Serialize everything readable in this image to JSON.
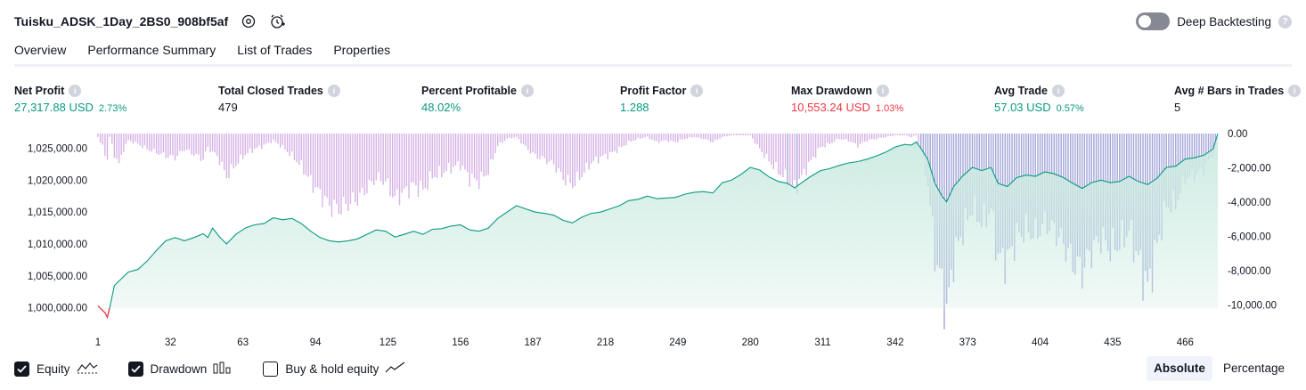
{
  "header": {
    "title": "Tuisku_ADSK_1Day_2BS0_908bf5af",
    "settings_icon": "gear-icon",
    "alert_icon": "alarm-plus-icon",
    "deep_backtesting_label": "Deep Backtesting",
    "deep_backtesting_enabled": false
  },
  "tabs": [
    {
      "label": "Overview",
      "active": true
    },
    {
      "label": "Performance Summary",
      "active": false
    },
    {
      "label": "List of Trades",
      "active": false
    },
    {
      "label": "Properties",
      "active": false
    }
  ],
  "metrics": [
    {
      "label": "Net Profit",
      "value": "27,317.88 USD",
      "pct": "2.73%",
      "tone": "pos"
    },
    {
      "label": "Total Closed Trades",
      "value": "479",
      "pct": "",
      "tone": "neu"
    },
    {
      "label": "Percent Profitable",
      "value": "48.02%",
      "pct": "",
      "tone": "pos"
    },
    {
      "label": "Profit Factor",
      "value": "1.288",
      "pct": "",
      "tone": "pos"
    },
    {
      "label": "Max Drawdown",
      "value": "10,553.24 USD",
      "pct": "1.03%",
      "tone": "neg"
    },
    {
      "label": "Avg Trade",
      "value": "57.03 USD",
      "pct": "0.57%",
      "tone": "pos"
    },
    {
      "label": "Avg # Bars in Trades",
      "value": "5",
      "pct": "",
      "tone": "neu"
    }
  ],
  "colors": {
    "positive": "#089981",
    "negative": "#f23645",
    "equity_line": "#089981",
    "equity_fill": "#cdebe2",
    "drawdown_bar": "#d6b2e6",
    "drawdown_bar_overlap": "#a3a6d8"
  },
  "chart_data": {
    "type": "area",
    "x_ticks": [
      "1",
      "32",
      "63",
      "94",
      "125",
      "156",
      "187",
      "218",
      "249",
      "280",
      "311",
      "342",
      "373",
      "404",
      "435",
      "466"
    ],
    "x_range": [
      1,
      480
    ],
    "left_axis": {
      "ticks": [
        "1,025,000.00",
        "1,020,000.00",
        "1,015,000.00",
        "1,010,000.00",
        "1,005,000.00",
        "1,000,000.00"
      ],
      "tick_values": [
        1025000,
        1020000,
        1015000,
        1010000,
        1005000,
        1000000
      ],
      "range": [
        998000,
        1027300
      ]
    },
    "right_axis": {
      "ticks": [
        "0.00",
        "-2,000.00",
        "-4,000.00",
        "-6,000.00",
        "-8,000.00",
        "-10,000.00"
      ],
      "tick_values": [
        0,
        -2000,
        -4000,
        -6000,
        -8000,
        -10000
      ],
      "range": [
        -10900,
        0
      ]
    },
    "series": [
      {
        "name": "Equity",
        "axis": "left",
        "points": [
          [
            1,
            1000300
          ],
          [
            4,
            999200
          ],
          [
            5,
            998500
          ],
          [
            6,
            1000000
          ],
          [
            8,
            1003500
          ],
          [
            10,
            1004200
          ],
          [
            14,
            1005600
          ],
          [
            18,
            1006000
          ],
          [
            22,
            1007300
          ],
          [
            26,
            1009000
          ],
          [
            30,
            1010500
          ],
          [
            34,
            1011000
          ],
          [
            38,
            1010500
          ],
          [
            42,
            1011000
          ],
          [
            46,
            1011600
          ],
          [
            48,
            1011000
          ],
          [
            50,
            1012500
          ],
          [
            53,
            1011100
          ],
          [
            56,
            1010000
          ],
          [
            60,
            1011500
          ],
          [
            64,
            1012500
          ],
          [
            68,
            1013000
          ],
          [
            72,
            1013200
          ],
          [
            76,
            1014100
          ],
          [
            80,
            1013800
          ],
          [
            84,
            1014000
          ],
          [
            88,
            1013200
          ],
          [
            92,
            1012000
          ],
          [
            96,
            1011000
          ],
          [
            100,
            1010500
          ],
          [
            104,
            1010300
          ],
          [
            108,
            1010500
          ],
          [
            112,
            1010800
          ],
          [
            116,
            1011500
          ],
          [
            120,
            1012200
          ],
          [
            124,
            1012000
          ],
          [
            128,
            1011100
          ],
          [
            132,
            1011500
          ],
          [
            136,
            1012000
          ],
          [
            140,
            1011500
          ],
          [
            144,
            1012300
          ],
          [
            148,
            1012400
          ],
          [
            152,
            1012800
          ],
          [
            156,
            1013000
          ],
          [
            160,
            1012200
          ],
          [
            164,
            1012000
          ],
          [
            168,
            1012500
          ],
          [
            172,
            1014000
          ],
          [
            176,
            1015000
          ],
          [
            180,
            1016000
          ],
          [
            184,
            1015500
          ],
          [
            188,
            1015000
          ],
          [
            192,
            1014800
          ],
          [
            196,
            1014500
          ],
          [
            200,
            1013700
          ],
          [
            204,
            1013300
          ],
          [
            208,
            1014200
          ],
          [
            212,
            1014800
          ],
          [
            216,
            1015000
          ],
          [
            220,
            1015500
          ],
          [
            224,
            1016000
          ],
          [
            228,
            1016800
          ],
          [
            232,
            1017000
          ],
          [
            236,
            1017500
          ],
          [
            240,
            1017100
          ],
          [
            244,
            1017200
          ],
          [
            248,
            1017300
          ],
          [
            252,
            1017800
          ],
          [
            256,
            1018100
          ],
          [
            260,
            1018200
          ],
          [
            264,
            1018000
          ],
          [
            268,
            1019600
          ],
          [
            272,
            1020000
          ],
          [
            276,
            1020900
          ],
          [
            280,
            1022000
          ],
          [
            284,
            1021600
          ],
          [
            288,
            1020500
          ],
          [
            292,
            1019800
          ],
          [
            296,
            1019500
          ],
          [
            299,
            1018800
          ],
          [
            302,
            1019600
          ],
          [
            306,
            1020600
          ],
          [
            310,
            1021500
          ],
          [
            314,
            1021800
          ],
          [
            318,
            1022300
          ],
          [
            322,
            1022700
          ],
          [
            326,
            1022900
          ],
          [
            330,
            1023300
          ],
          [
            334,
            1023800
          ],
          [
            338,
            1024400
          ],
          [
            342,
            1025200
          ],
          [
            346,
            1025600
          ],
          [
            349,
            1025500
          ],
          [
            351,
            1026000
          ],
          [
            353,
            1025000
          ],
          [
            356,
            1023200
          ],
          [
            359,
            1019500
          ],
          [
            362,
            1017500
          ],
          [
            364,
            1016600
          ],
          [
            367,
            1019000
          ],
          [
            371,
            1020700
          ],
          [
            375,
            1022000
          ],
          [
            379,
            1021500
          ],
          [
            383,
            1022000
          ],
          [
            386,
            1019500
          ],
          [
            390,
            1019000
          ],
          [
            394,
            1020400
          ],
          [
            398,
            1020800
          ],
          [
            402,
            1020600
          ],
          [
            406,
            1021300
          ],
          [
            410,
            1021000
          ],
          [
            414,
            1020400
          ],
          [
            418,
            1019500
          ],
          [
            422,
            1018700
          ],
          [
            426,
            1019600
          ],
          [
            430,
            1020000
          ],
          [
            434,
            1019600
          ],
          [
            438,
            1019800
          ],
          [
            442,
            1020600
          ],
          [
            446,
            1019800
          ],
          [
            450,
            1019300
          ],
          [
            454,
            1020300
          ],
          [
            458,
            1022000
          ],
          [
            462,
            1022200
          ],
          [
            466,
            1023300
          ],
          [
            470,
            1023500
          ],
          [
            474,
            1023900
          ],
          [
            478,
            1024900
          ],
          [
            480,
            1027300
          ]
        ]
      },
      {
        "name": "Drawdown",
        "axis": "right",
        "points": [
          [
            1,
            -200
          ],
          [
            3,
            -800
          ],
          [
            5,
            -1500
          ],
          [
            6,
            -200
          ],
          [
            8,
            -1200
          ],
          [
            10,
            -1800
          ],
          [
            12,
            -900
          ],
          [
            14,
            -400
          ],
          [
            18,
            -600
          ],
          [
            22,
            -900
          ],
          [
            26,
            -1100
          ],
          [
            30,
            -1300
          ],
          [
            34,
            -1400
          ],
          [
            38,
            -900
          ],
          [
            42,
            -1200
          ],
          [
            46,
            -1500
          ],
          [
            48,
            -800
          ],
          [
            50,
            -1100
          ],
          [
            52,
            -1300
          ],
          [
            56,
            -2500
          ],
          [
            60,
            -1800
          ],
          [
            64,
            -1200
          ],
          [
            68,
            -900
          ],
          [
            72,
            -700
          ],
          [
            76,
            -400
          ],
          [
            80,
            -800
          ],
          [
            84,
            -1300
          ],
          [
            88,
            -1900
          ],
          [
            92,
            -2800
          ],
          [
            96,
            -3500
          ],
          [
            100,
            -4200
          ],
          [
            104,
            -4400
          ],
          [
            108,
            -4100
          ],
          [
            112,
            -3800
          ],
          [
            116,
            -3200
          ],
          [
            120,
            -2600
          ],
          [
            124,
            -2800
          ],
          [
            128,
            -3800
          ],
          [
            132,
            -3400
          ],
          [
            136,
            -3000
          ],
          [
            140,
            -3300
          ],
          [
            144,
            -2500
          ],
          [
            148,
            -2300
          ],
          [
            152,
            -2000
          ],
          [
            156,
            -1800
          ],
          [
            160,
            -2600
          ],
          [
            164,
            -2800
          ],
          [
            168,
            -2200
          ],
          [
            172,
            -700
          ],
          [
            176,
            -300
          ],
          [
            180,
            -200
          ],
          [
            184,
            -800
          ],
          [
            188,
            -1300
          ],
          [
            192,
            -1500
          ],
          [
            196,
            -1800
          ],
          [
            200,
            -2600
          ],
          [
            204,
            -3000
          ],
          [
            208,
            -2400
          ],
          [
            212,
            -1700
          ],
          [
            216,
            -1400
          ],
          [
            220,
            -1200
          ],
          [
            224,
            -900
          ],
          [
            228,
            -500
          ],
          [
            232,
            -300
          ],
          [
            236,
            -200
          ],
          [
            240,
            -500
          ],
          [
            244,
            -400
          ],
          [
            248,
            -500
          ],
          [
            252,
            -300
          ],
          [
            256,
            -200
          ],
          [
            260,
            -300
          ],
          [
            264,
            -500
          ],
          [
            268,
            -200
          ],
          [
            272,
            -100
          ],
          [
            276,
            -100
          ],
          [
            280,
            -100
          ],
          [
            284,
            -900
          ],
          [
            288,
            -1600
          ],
          [
            292,
            -2200
          ],
          [
            296,
            -2700
          ],
          [
            299,
            -3200
          ],
          [
            302,
            -2500
          ],
          [
            306,
            -1600
          ],
          [
            310,
            -800
          ],
          [
            314,
            -600
          ],
          [
            318,
            -300
          ],
          [
            322,
            -400
          ],
          [
            326,
            -700
          ],
          [
            330,
            -400
          ],
          [
            334,
            -300
          ],
          [
            338,
            -200
          ],
          [
            342,
            -100
          ],
          [
            346,
            -100
          ],
          [
            349,
            -200
          ],
          [
            351,
            -100
          ],
          [
            353,
            -1000
          ],
          [
            356,
            -2900
          ],
          [
            359,
            -7000
          ],
          [
            362,
            -8800
          ],
          [
            364,
            -10500
          ],
          [
            367,
            -7300
          ],
          [
            371,
            -5600
          ],
          [
            375,
            -4300
          ],
          [
            379,
            -5200
          ],
          [
            383,
            -4400
          ],
          [
            386,
            -7200
          ],
          [
            390,
            -7400
          ],
          [
            394,
            -6000
          ],
          [
            398,
            -5600
          ],
          [
            402,
            -5900
          ],
          [
            406,
            -5200
          ],
          [
            410,
            -5600
          ],
          [
            414,
            -6400
          ],
          [
            418,
            -7500
          ],
          [
            422,
            -8000
          ],
          [
            426,
            -6800
          ],
          [
            430,
            -6100
          ],
          [
            434,
            -6700
          ],
          [
            438,
            -6400
          ],
          [
            442,
            -5600
          ],
          [
            446,
            -7300
          ],
          [
            450,
            -9000
          ],
          [
            454,
            -6500
          ],
          [
            458,
            -4200
          ],
          [
            462,
            -4100
          ],
          [
            466,
            -2600
          ],
          [
            470,
            -2400
          ],
          [
            474,
            -2100
          ],
          [
            478,
            -1200
          ],
          [
            480,
            0
          ]
        ]
      }
    ]
  },
  "legend": [
    {
      "label": "Equity",
      "checked": true,
      "icon": "equity-line-icon"
    },
    {
      "label": "Drawdown",
      "checked": true,
      "icon": "drawdown-bars-icon"
    },
    {
      "label": "Buy & hold equity",
      "checked": false,
      "icon": "buy-hold-line-icon"
    }
  ],
  "view_toggle": {
    "options": [
      "Absolute",
      "Percentage"
    ],
    "selected": "Absolute"
  }
}
